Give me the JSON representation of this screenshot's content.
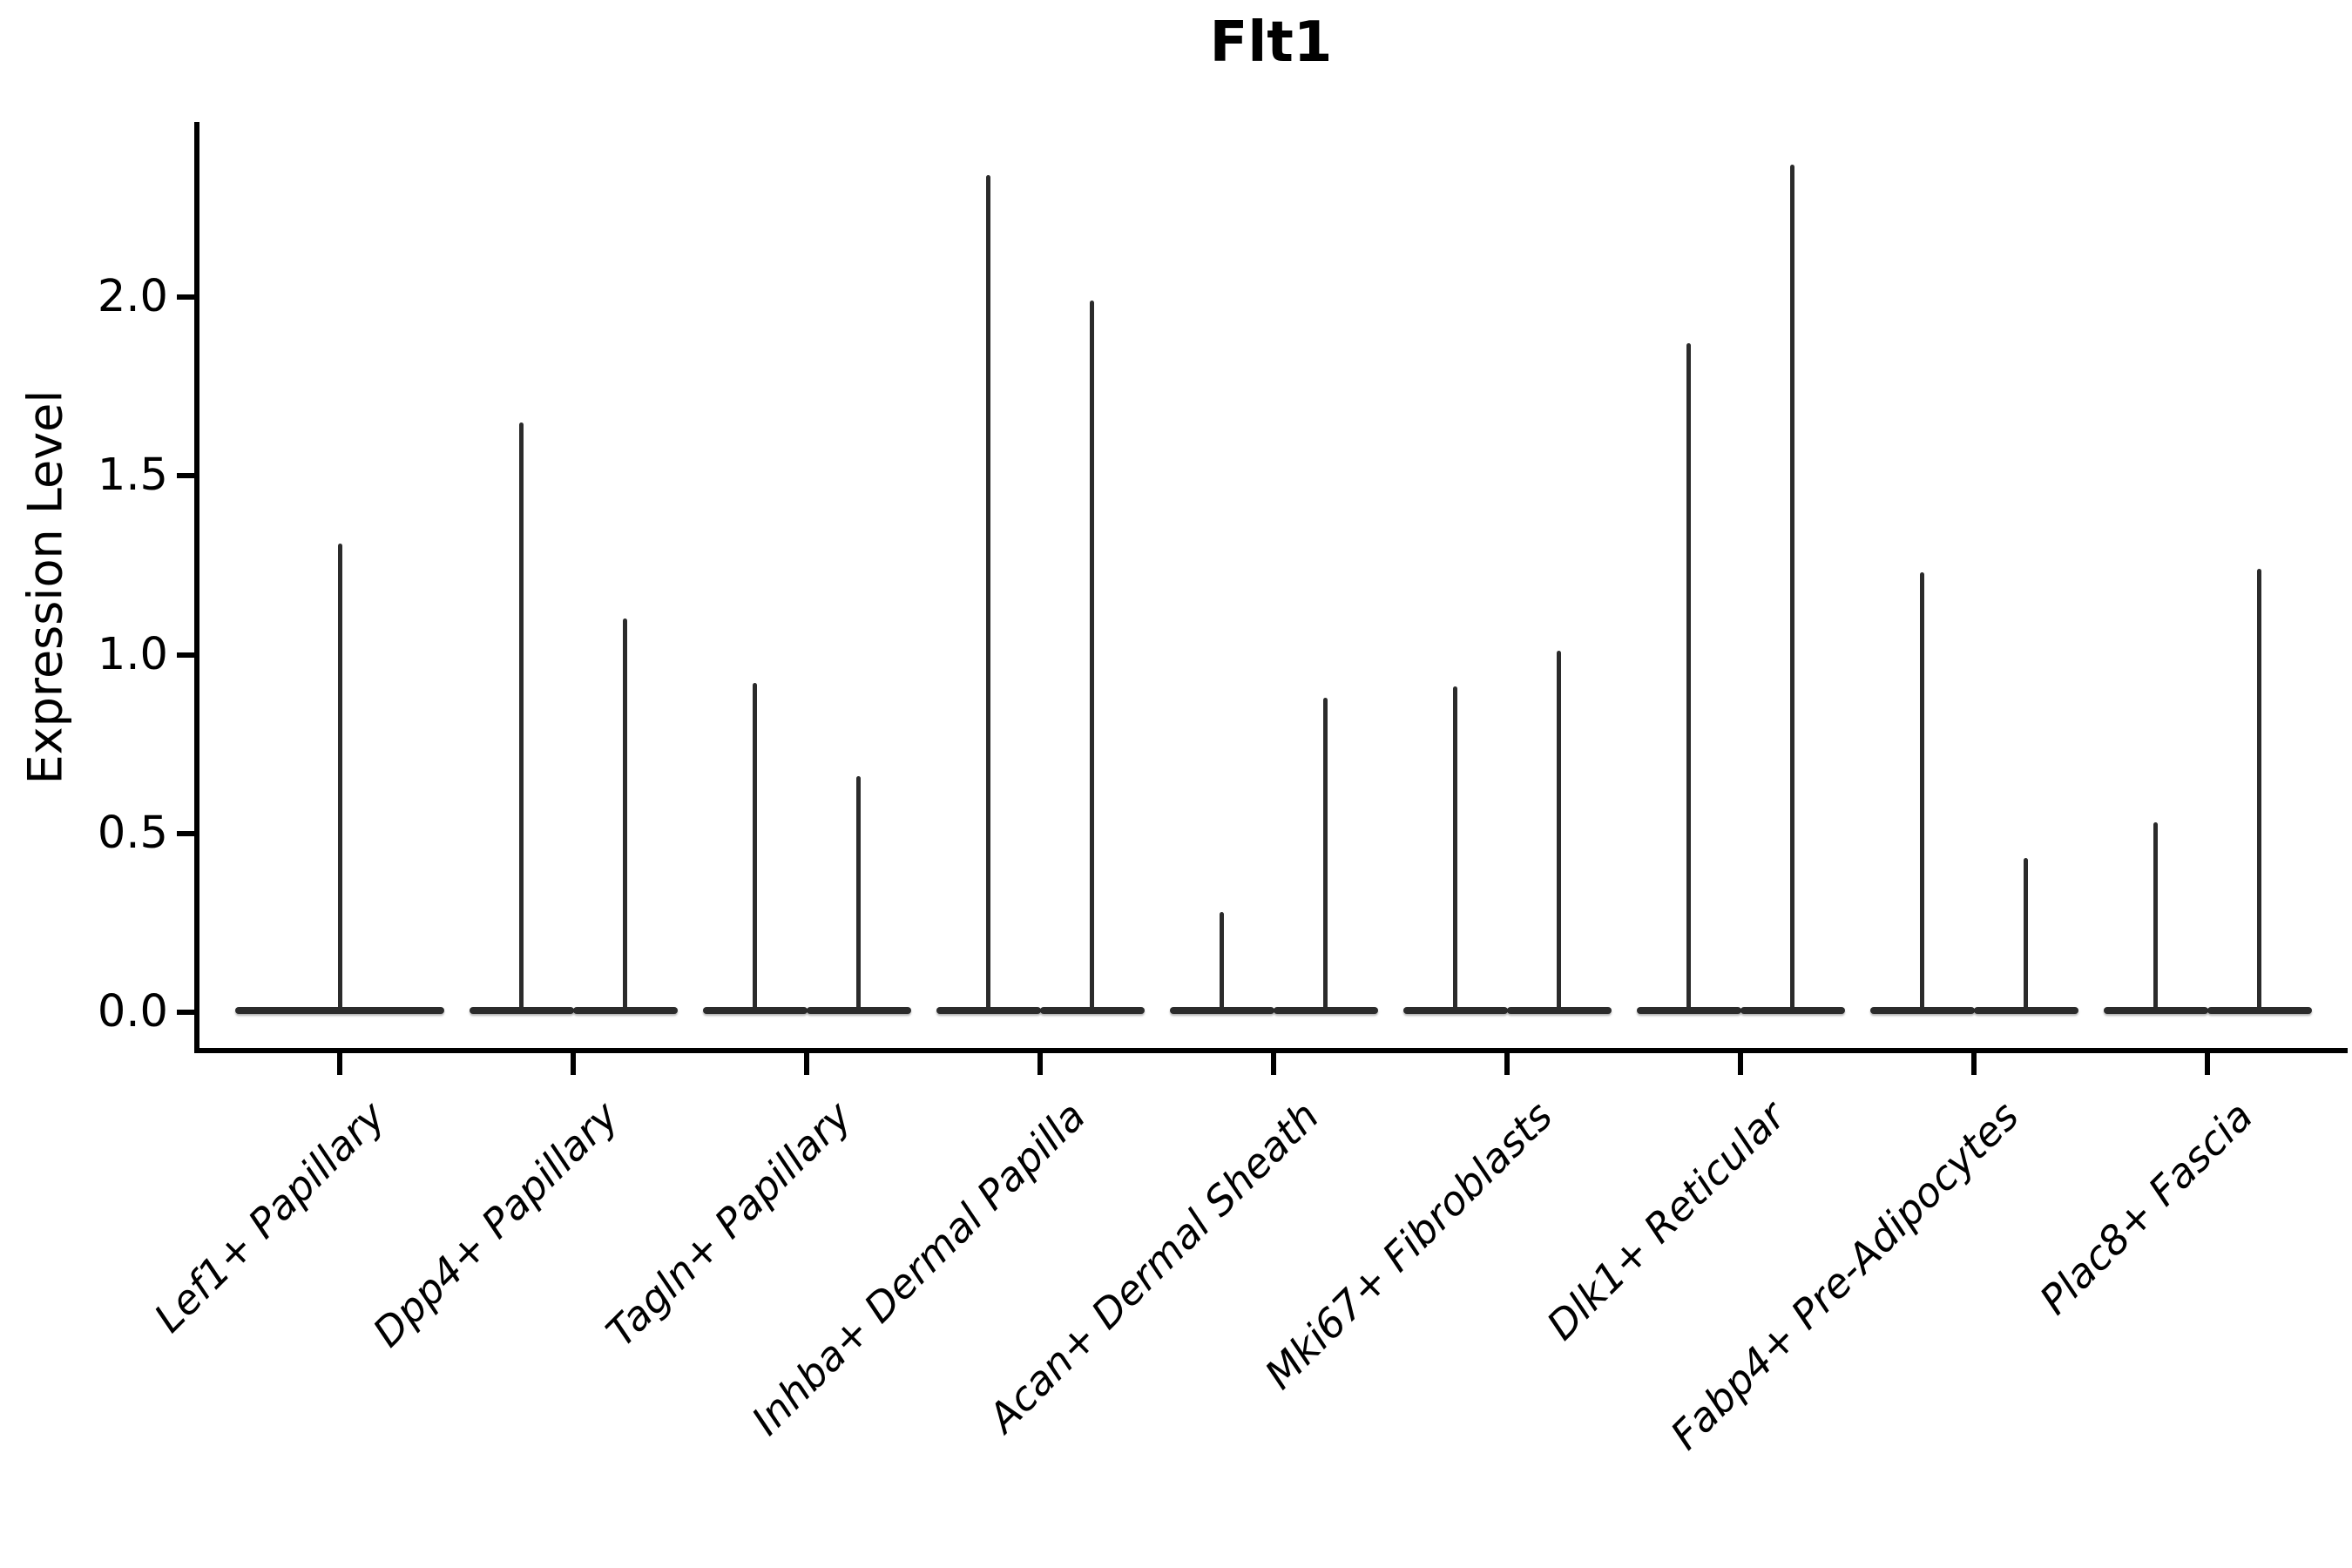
{
  "figure": {
    "title": "Flt1"
  },
  "y_axis": {
    "label": "Expression Level",
    "tick_labels": [
      "2.0",
      "1.5",
      "1.0",
      "0.5",
      "0.0"
    ]
  },
  "colors": {
    "violin": "#2b2b2b",
    "axis": "#000000",
    "background": "#ffffff"
  },
  "chart_data": {
    "type": "violin",
    "title": "Flt1",
    "xlabel": "",
    "ylabel": "Expression Level",
    "ylim": [
      -0.11,
      2.49
    ],
    "yticks": [
      0.0,
      0.5,
      1.0,
      1.5,
      2.0
    ],
    "grid": false,
    "legend": null,
    "categories": [
      "Lef1+ Papillary",
      "Dpp4+ Papillary",
      "Tagln+ Papillary",
      "Inhba+ Dermal Papilla",
      "Acan+ Dermal Sheath",
      "Mki67+ Fibroblasts",
      "Dlk1+ Reticular",
      "Fabp4+ Pre-Adipocytes",
      "Plac8+ Fascia"
    ],
    "series": [
      {
        "category": "Lef1+ Papillary",
        "violin_max_values": [
          1.31
        ]
      },
      {
        "category": "Dpp4+ Papillary",
        "violin_max_values": [
          1.65,
          1.1
        ]
      },
      {
        "category": "Tagln+ Papillary",
        "violin_max_values": [
          0.92,
          0.66
        ]
      },
      {
        "category": "Inhba+ Dermal Papilla",
        "violin_max_values": [
          2.34,
          1.99
        ]
      },
      {
        "category": "Acan+ Dermal Sheath",
        "violin_max_values": [
          0.28,
          0.88
        ]
      },
      {
        "category": "Mki67+ Fibroblasts",
        "violin_max_values": [
          0.91,
          1.01
        ]
      },
      {
        "category": "Dlk1+ Reticular",
        "violin_max_values": [
          1.87,
          2.37
        ]
      },
      {
        "category": "Fabp4+ Pre-Adipocytes",
        "violin_max_values": [
          1.23,
          0.43
        ]
      },
      {
        "category": "Plac8+ Fascia",
        "violin_max_values": [
          0.53,
          1.24
        ]
      }
    ],
    "note": "Expression mass is concentrated at 0 for every violin (wide flat base at y=0) with an extremely thin density spike reaching the listed maximum expression value. Categories with two values contain two side-by-side violins whose flat bases merge."
  }
}
